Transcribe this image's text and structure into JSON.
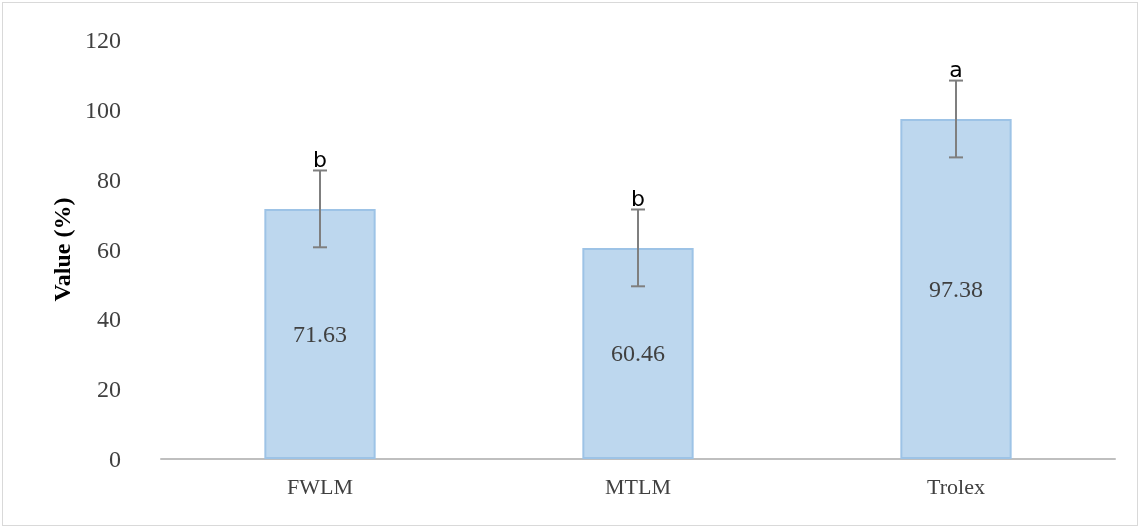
{
  "chart_data": {
    "type": "bar",
    "ylabel": "Value (%)",
    "categories": [
      "FWLM",
      "MTLM",
      "Trolex"
    ],
    "values": [
      71.63,
      60.46,
      97.38
    ],
    "errors": [
      11,
      11,
      11
    ],
    "color": "#bdd7ee",
    "ylim": [
      0,
      120
    ],
    "yticks": [
      0,
      20,
      40,
      60,
      80,
      100,
      120
    ],
    "grid": false,
    "data_labels": true,
    "annotations": [
      {
        "text": "b",
        "x": "FWLM",
        "y": 82.63
      },
      {
        "text": "b",
        "x": "MTLM",
        "y": 71.46
      },
      {
        "text": "a",
        "x": "Trolex",
        "y": 108.38
      }
    ]
  }
}
